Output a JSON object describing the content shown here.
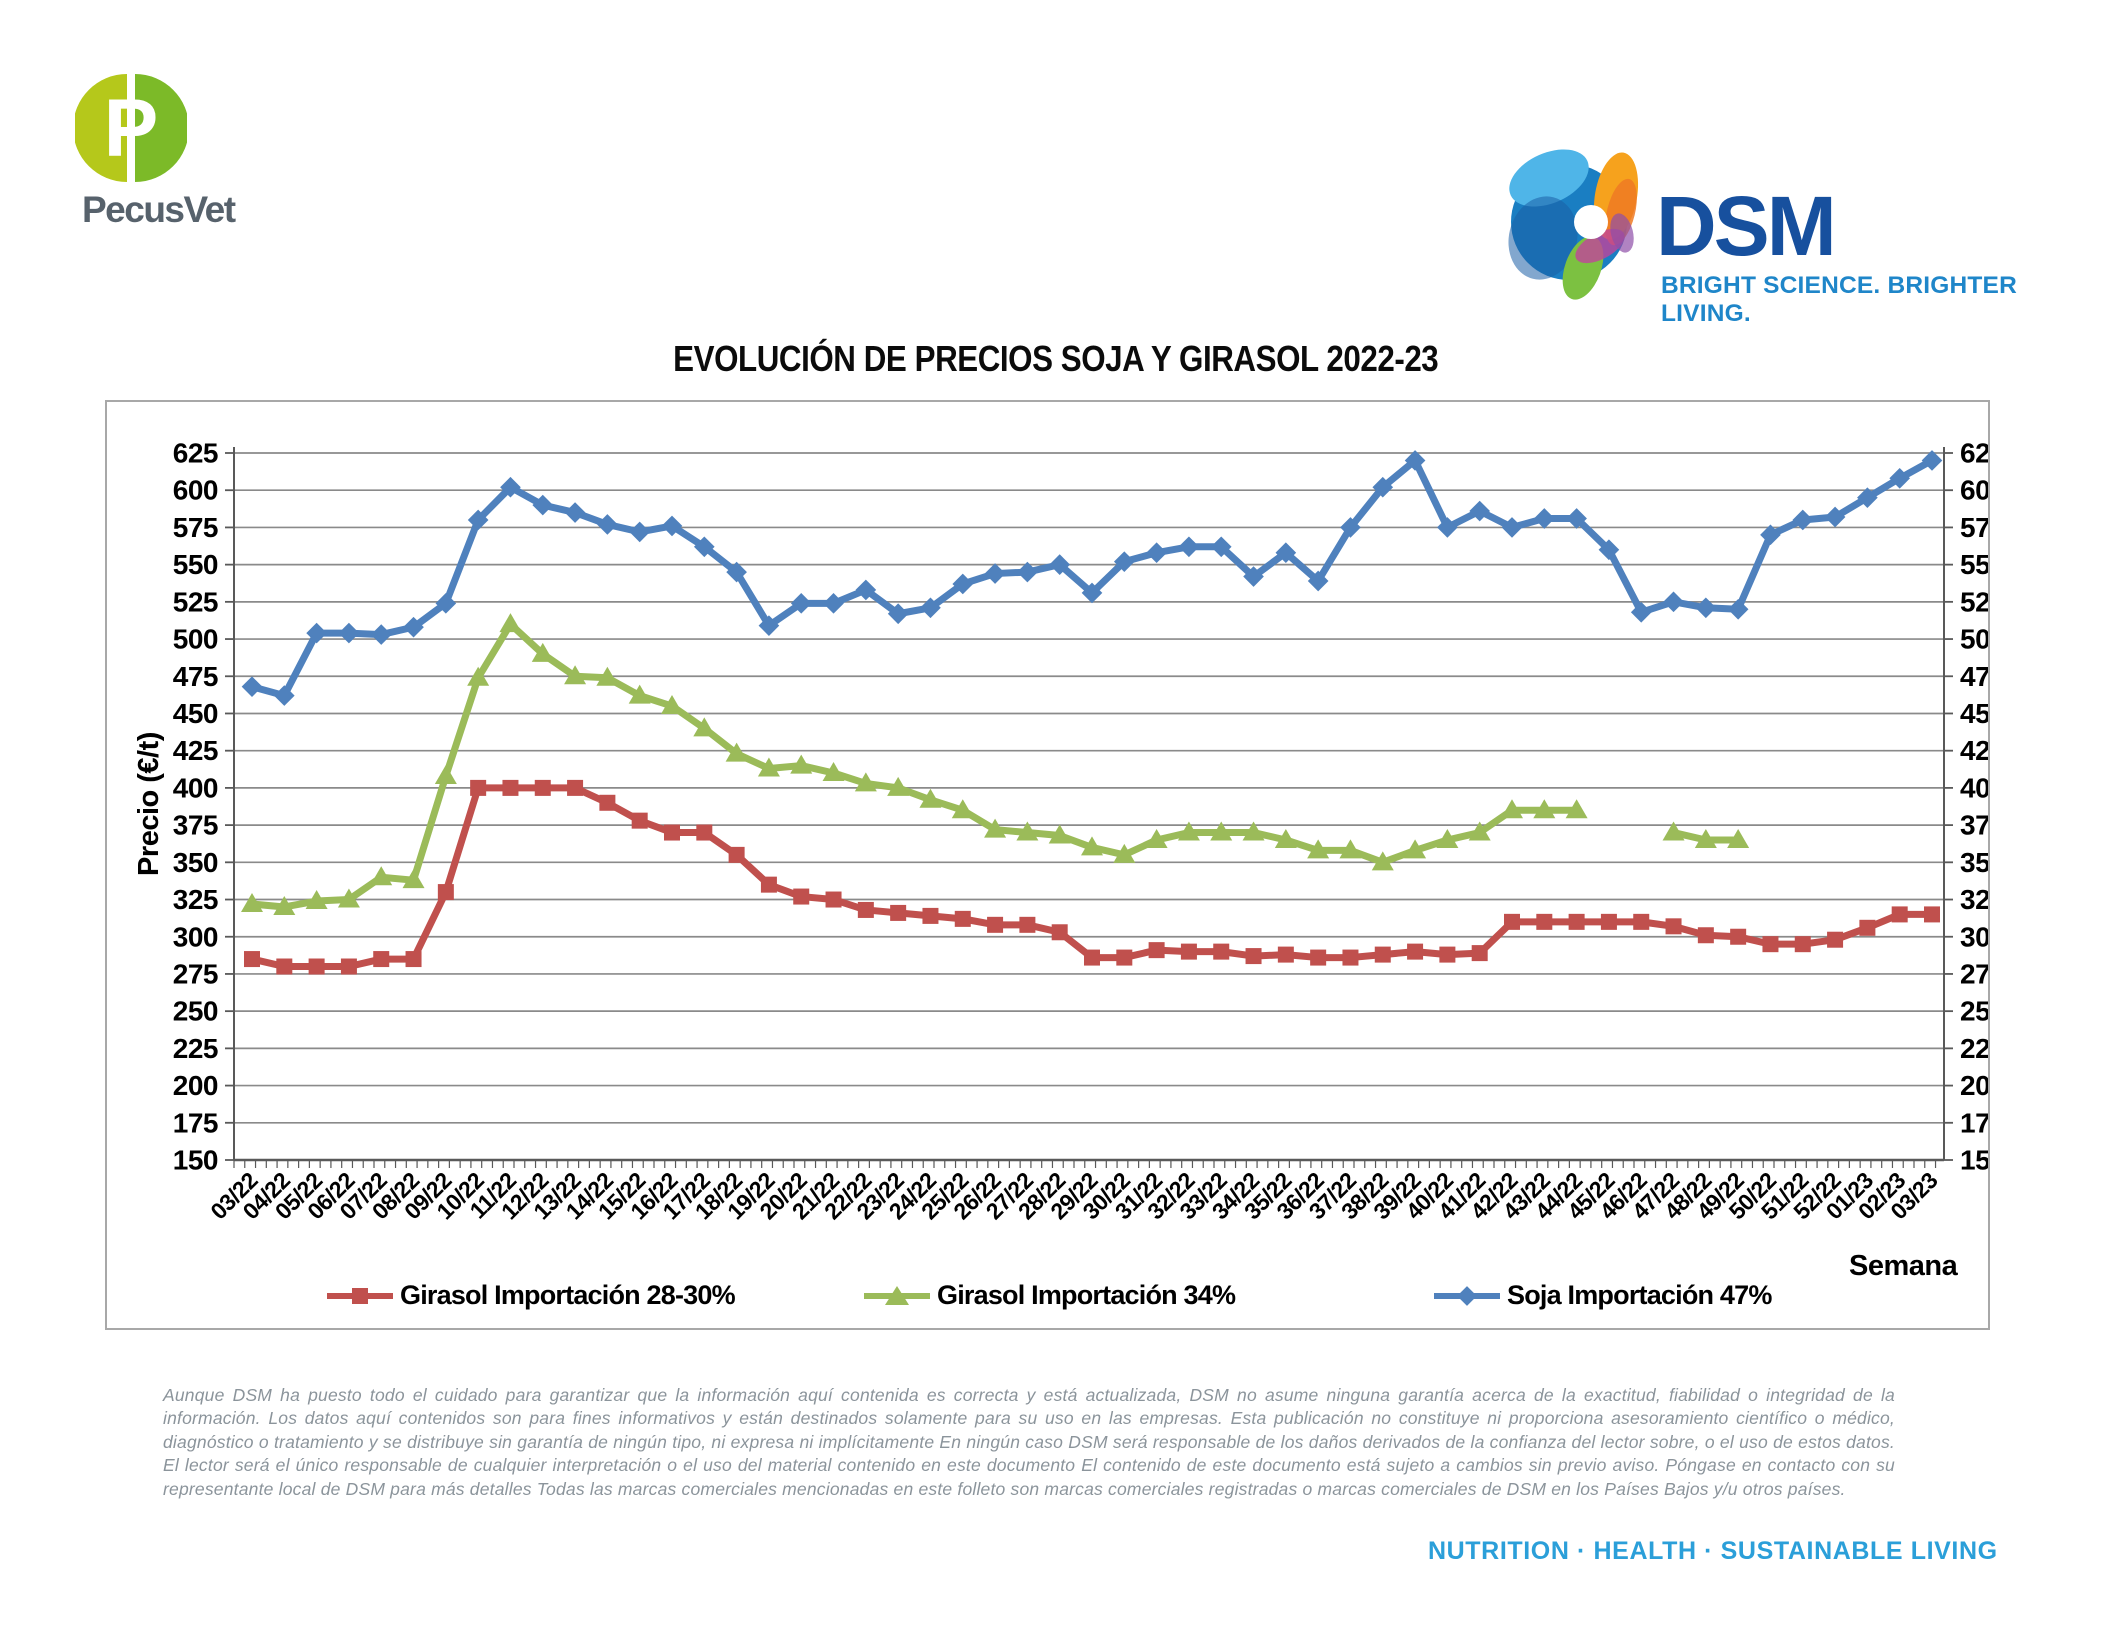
{
  "header": {
    "pecusvet": {
      "wordmark": "PecusVet"
    },
    "dsm": {
      "wordmark": "DSM",
      "tagline": "BRIGHT SCIENCE. BRIGHTER LIVING."
    }
  },
  "title": "EVOLUCIÓN DE PRECIOS SOJA Y GIRASOL 2022-23",
  "chart_data": {
    "type": "line",
    "title": "EVOLUCIÓN DE PRECIOS SOJA Y GIRASOL 2022-23",
    "xlabel": "Semana",
    "ylabel": "Precio (€/t)",
    "ylim": [
      150,
      625
    ],
    "ytick_step": 25,
    "grid": true,
    "legend_position": "bottom",
    "colors": {
      "grid": "#8a8a8a",
      "axis": "#595959",
      "frame": "#a8a8a8"
    },
    "categories": [
      "03/22",
      "04/22",
      "05/22",
      "06/22",
      "07/22",
      "08/22",
      "09/22",
      "10/22",
      "11/22",
      "12/22",
      "13/22",
      "14/22",
      "15/22",
      "16/22",
      "17/22",
      "18/22",
      "19/22",
      "20/22",
      "21/22",
      "22/22",
      "23/22",
      "24/22",
      "25/22",
      "26/22",
      "27/22",
      "28/22",
      "29/22",
      "30/22",
      "31/22",
      "32/22",
      "33/22",
      "34/22",
      "35/22",
      "36/22",
      "37/22",
      "38/22",
      "39/22",
      "40/22",
      "41/22",
      "42/22",
      "43/22",
      "44/22",
      "45/22",
      "46/22",
      "47/22",
      "48/22",
      "49/22",
      "50/22",
      "51/22",
      "52/22",
      "01/23",
      "02/23",
      "03/23"
    ],
    "series": [
      {
        "name": "Girasol Importación 28-30%",
        "color": "#C0504D",
        "marker": "square",
        "values": [
          285,
          280,
          280,
          280,
          285,
          285,
          330,
          400,
          400,
          400,
          400,
          390,
          378,
          370,
          370,
          355,
          335,
          327,
          325,
          318,
          316,
          314,
          312,
          308,
          308,
          303,
          286,
          286,
          291,
          290,
          290,
          287,
          288,
          286,
          286,
          288,
          290,
          288,
          289,
          310,
          310,
          310,
          310,
          310,
          307,
          301,
          300,
          295,
          295,
          298,
          306,
          315,
          315
        ]
      },
      {
        "name": "Girasol Importación 34%",
        "color": "#9BBB59",
        "marker": "triangle",
        "values": [
          322,
          320,
          324,
          325,
          340,
          338,
          408,
          474,
          510,
          490,
          475,
          474,
          462,
          455,
          440,
          423,
          413,
          415,
          410,
          403,
          400,
          392,
          385,
          372,
          370,
          368,
          360,
          355,
          365,
          370,
          370,
          370,
          365,
          358,
          358,
          350,
          358,
          365,
          370,
          385,
          385,
          385,
          null,
          null,
          370,
          365,
          365,
          null,
          null,
          null,
          null,
          null,
          null
        ]
      },
      {
        "name": "Soja Importación 47%",
        "color": "#4F81BD",
        "marker": "diamond",
        "values": [
          468,
          462,
          504,
          504,
          503,
          508,
          524,
          580,
          602,
          590,
          585,
          577,
          572,
          576,
          562,
          545,
          509,
          524,
          524,
          533,
          517,
          521,
          537,
          544,
          545,
          550,
          531,
          552,
          558,
          562,
          562,
          542,
          558,
          539,
          575,
          602,
          620,
          575,
          586,
          575,
          581,
          581,
          560,
          518,
          525,
          521,
          520,
          570,
          580,
          582,
          595,
          608,
          620
        ]
      }
    ]
  },
  "footer": {
    "disclaimer": "Aunque DSM ha puesto todo el cuidado para garantizar que la información aquí contenida es correcta y está actualizada, DSM no asume ninguna garantía acerca de la exactitud, fiabilidad o integridad de la información. Los datos aquí contenidos son para fines informativos y están destinados solamente para su uso en las empresas. Esta publicación no constituye ni proporciona asesoramiento científico o médico, diagnóstico o tratamiento y se distribuye sin garantía de ningún tipo, ni expresa ni implícitamente En ningún caso DSM será responsable de los daños derivados de la confianza del lector sobre, o el uso de estos datos. El lector será el único responsable de cualquier interpretación o el uso del material contenido en este documento El contenido de este documento está sujeto a cambios sin previo aviso. Póngase en contacto con su representante local de DSM para más detalles Todas las marcas comerciales mencionadas en este folleto son marcas comerciales registradas o marcas comerciales de DSM en los Países Bajos y/u otros países.",
    "tagline": "NUTRITION  ·  HEALTH  ·  SUSTAINABLE LIVING"
  }
}
